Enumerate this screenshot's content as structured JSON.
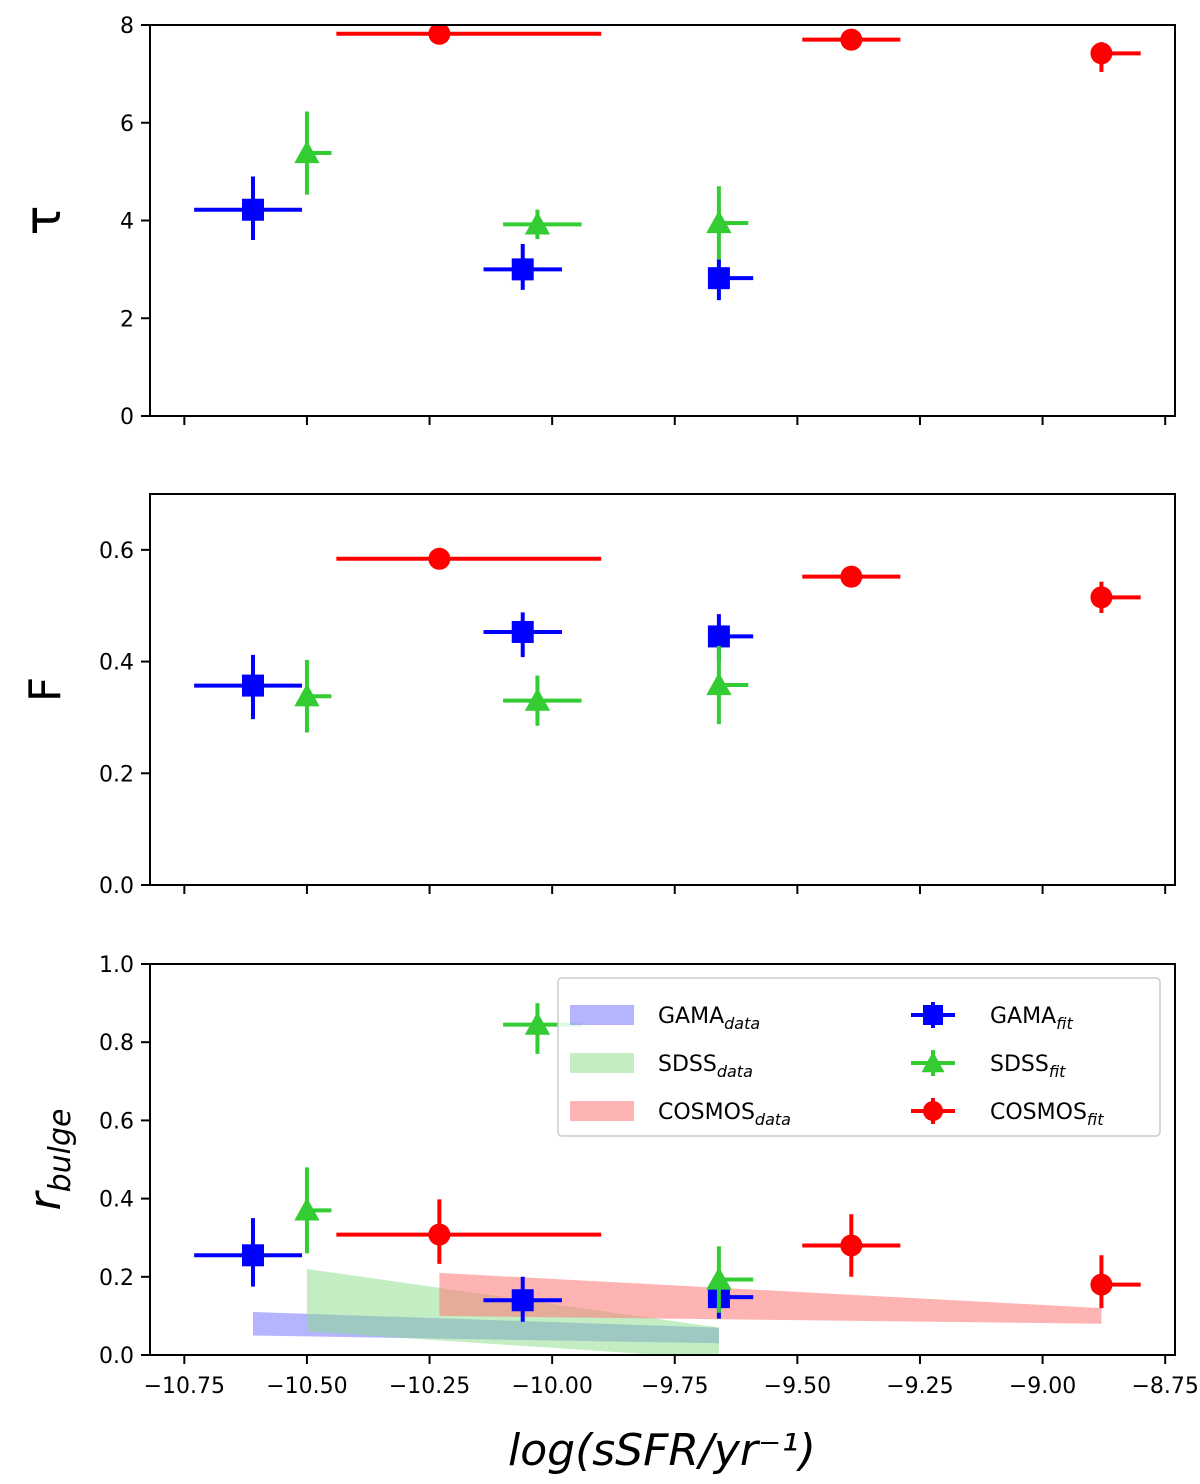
{
  "chart_data": {
    "type": "scatter",
    "xlabel": "log(sSFR/yr⁻¹)",
    "xlim": [
      -10.82,
      -8.73
    ],
    "xticks": [
      -10.75,
      -10.5,
      -10.25,
      -10.0,
      -9.75,
      -9.5,
      -9.25,
      -9.0,
      -8.75
    ],
    "xtick_labels": [
      "−10.75",
      "−10.50",
      "−10.25",
      "−10.00",
      "−9.75",
      "−9.50",
      "−9.25",
      "−9.00",
      "−8.75"
    ],
    "colors": {
      "GAMA": "#0000ff",
      "SDSS": "#33cc33",
      "COSMOS": "#ff0000"
    },
    "panels": [
      {
        "id": "tau",
        "ylabel": "τ",
        "ylim": [
          0,
          8
        ],
        "yticks": [
          0,
          2,
          4,
          6,
          8
        ],
        "ytick_labels": [
          "0",
          "2",
          "4",
          "6",
          "8"
        ],
        "series": [
          {
            "key": "GAMA",
            "marker": "square",
            "points": [
              {
                "x": -10.61,
                "y": 4.22,
                "xerr": [
                  0.12,
                  0.1
                ],
                "yerr": [
                  0.62,
                  0.68
                ]
              },
              {
                "x": -10.06,
                "y": 3.0,
                "xerr": [
                  0.08,
                  0.08
                ],
                "yerr": [
                  0.42,
                  0.52
                ]
              },
              {
                "x": -9.66,
                "y": 2.82,
                "xerr": [
                  0.0,
                  0.07
                ],
                "yerr": [
                  0.45,
                  0.4
                ]
              }
            ]
          },
          {
            "key": "SDSS",
            "marker": "triangle",
            "points": [
              {
                "x": -10.5,
                "y": 5.38,
                "xerr": [
                  0.0,
                  0.05
                ],
                "yerr": [
                  0.85,
                  0.85
                ]
              },
              {
                "x": -10.03,
                "y": 3.92,
                "xerr": [
                  0.07,
                  0.09
                ],
                "yerr": [
                  0.3,
                  0.3
                ]
              },
              {
                "x": -9.66,
                "y": 3.95,
                "xerr": [
                  0.0,
                  0.06
                ],
                "yerr": [
                  0.75,
                  0.75
                ]
              }
            ]
          },
          {
            "key": "COSMOS",
            "marker": "circle",
            "points": [
              {
                "x": -10.23,
                "y": 7.82,
                "xerr": [
                  0.21,
                  0.33
                ],
                "yerr": [
                  0.0,
                  0.0
                ]
              },
              {
                "x": -9.39,
                "y": 7.7,
                "xerr": [
                  0.1,
                  0.1
                ],
                "yerr": [
                  0.0,
                  0.0
                ]
              },
              {
                "x": -8.88,
                "y": 7.42,
                "xerr": [
                  0.0,
                  0.08
                ],
                "yerr": [
                  0.38,
                  0.23
                ]
              }
            ]
          }
        ]
      },
      {
        "id": "F",
        "ylabel": "F",
        "ylim": [
          0.0,
          0.7
        ],
        "yticks": [
          0.0,
          0.2,
          0.4,
          0.6
        ],
        "ytick_labels": [
          "0.0",
          "0.2",
          "0.4",
          "0.6"
        ],
        "series": [
          {
            "key": "GAMA",
            "marker": "square",
            "points": [
              {
                "x": -10.61,
                "y": 0.357,
                "xerr": [
                  0.12,
                  0.1
                ],
                "yerr": [
                  0.06,
                  0.055
                ]
              },
              {
                "x": -10.06,
                "y": 0.453,
                "xerr": [
                  0.08,
                  0.08
                ],
                "yerr": [
                  0.045,
                  0.035
                ]
              },
              {
                "x": -9.66,
                "y": 0.445,
                "xerr": [
                  0.0,
                  0.07
                ],
                "yerr": [
                  0.045,
                  0.04
                ]
              }
            ]
          },
          {
            "key": "SDSS",
            "marker": "triangle",
            "points": [
              {
                "x": -10.5,
                "y": 0.338,
                "xerr": [
                  0.0,
                  0.05
                ],
                "yerr": [
                  0.065,
                  0.065
                ]
              },
              {
                "x": -10.03,
                "y": 0.33,
                "xerr": [
                  0.07,
                  0.09
                ],
                "yerr": [
                  0.045,
                  0.045
                ]
              },
              {
                "x": -9.66,
                "y": 0.358,
                "xerr": [
                  0.0,
                  0.06
                ],
                "yerr": [
                  0.07,
                  0.07
                ]
              }
            ]
          },
          {
            "key": "COSMOS",
            "marker": "circle",
            "points": [
              {
                "x": -10.23,
                "y": 0.584,
                "xerr": [
                  0.21,
                  0.33
                ],
                "yerr": [
                  0.0,
                  0.0
                ]
              },
              {
                "x": -9.39,
                "y": 0.552,
                "xerr": [
                  0.1,
                  0.1
                ],
                "yerr": [
                  0.0,
                  0.0
                ]
              },
              {
                "x": -8.88,
                "y": 0.515,
                "xerr": [
                  0.0,
                  0.08
                ],
                "yerr": [
                  0.028,
                  0.028
                ]
              }
            ]
          }
        ]
      },
      {
        "id": "rbulge",
        "ylabel": "r",
        "ylabel_sub": "bulge",
        "ylim": [
          0.0,
          1.0
        ],
        "yticks": [
          0.0,
          0.2,
          0.4,
          0.6,
          0.8,
          1.0
        ],
        "ytick_labels": [
          "0.0",
          "0.2",
          "0.4",
          "0.6",
          "0.8",
          "1.0"
        ],
        "bands": [
          {
            "key": "GAMA",
            "color": "#7777ff",
            "opacity": 0.55,
            "x": [
              -10.61,
              -9.66
            ],
            "upper": [
              0.11,
              0.07
            ],
            "lower": [
              0.05,
              0.03
            ]
          },
          {
            "key": "SDSS",
            "color": "#88dd88",
            "opacity": 0.5,
            "x": [
              -10.5,
              -9.66
            ],
            "upper": [
              0.22,
              0.07
            ],
            "lower": [
              0.06,
              -0.01
            ]
          },
          {
            "key": "COSMOS",
            "color": "#ff7777",
            "opacity": 0.55,
            "x": [
              -10.23,
              -8.88
            ],
            "upper": [
              0.21,
              0.12
            ],
            "lower": [
              0.1,
              0.08
            ]
          }
        ],
        "series": [
          {
            "key": "GAMA",
            "marker": "square",
            "points": [
              {
                "x": -10.61,
                "y": 0.255,
                "xerr": [
                  0.12,
                  0.1
                ],
                "yerr": [
                  0.08,
                  0.095
                ]
              },
              {
                "x": -10.06,
                "y": 0.14,
                "xerr": [
                  0.08,
                  0.08
                ],
                "yerr": [
                  0.055,
                  0.06
                ]
              },
              {
                "x": -9.66,
                "y": 0.148,
                "xerr": [
                  0.0,
                  0.07
                ],
                "yerr": [
                  0.055,
                  0.05
                ]
              }
            ]
          },
          {
            "key": "SDSS",
            "marker": "triangle",
            "points": [
              {
                "x": -10.5,
                "y": 0.37,
                "xerr": [
                  0.0,
                  0.05
                ],
                "yerr": [
                  0.11,
                  0.11
                ]
              },
              {
                "x": -10.03,
                "y": 0.845,
                "xerr": [
                  0.07,
                  0.09
                ],
                "yerr": [
                  0.075,
                  0.055
                ]
              },
              {
                "x": -9.66,
                "y": 0.193,
                "xerr": [
                  0.0,
                  0.07
                ],
                "yerr": [
                  0.085,
                  0.085
                ]
              }
            ]
          },
          {
            "key": "COSMOS",
            "marker": "circle",
            "points": [
              {
                "x": -10.23,
                "y": 0.308,
                "xerr": [
                  0.21,
                  0.33
                ],
                "yerr": [
                  0.075,
                  0.09
                ]
              },
              {
                "x": -9.39,
                "y": 0.28,
                "xerr": [
                  0.1,
                  0.1
                ],
                "yerr": [
                  0.08,
                  0.08
                ]
              },
              {
                "x": -8.88,
                "y": 0.18,
                "xerr": [
                  0.0,
                  0.08
                ],
                "yerr": [
                  0.06,
                  0.075
                ]
              }
            ]
          }
        ]
      }
    ],
    "legend": {
      "placement": "upper-right",
      "entries": [
        {
          "key": "GAMA",
          "kind": "band",
          "label": "GAMA",
          "sub": "data"
        },
        {
          "key": "SDSS",
          "kind": "band",
          "label": "SDSS",
          "sub": "data"
        },
        {
          "key": "COSMOS",
          "kind": "band",
          "label": "COSMOS",
          "sub": "data"
        },
        {
          "key": "GAMA",
          "kind": "marker",
          "marker": "square",
          "label": "GAMA",
          "sub": "fit"
        },
        {
          "key": "SDSS",
          "kind": "marker",
          "marker": "triangle",
          "label": "SDSS",
          "sub": "fit"
        },
        {
          "key": "COSMOS",
          "kind": "marker",
          "marker": "circle",
          "label": "COSMOS",
          "sub": "fit"
        }
      ]
    }
  }
}
